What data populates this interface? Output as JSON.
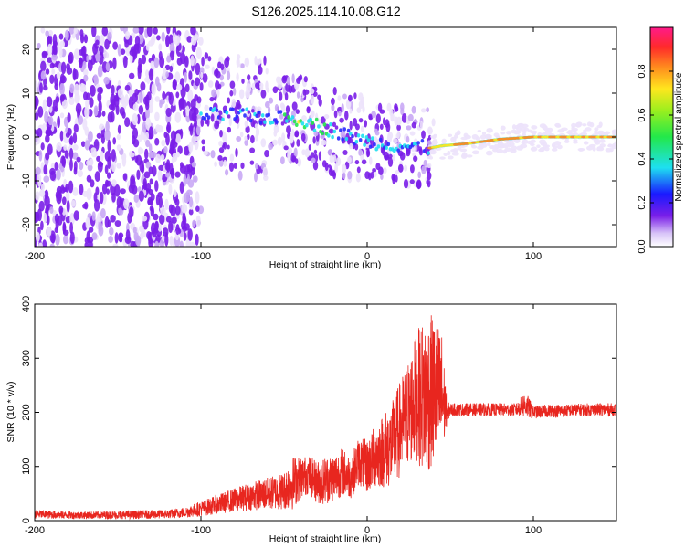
{
  "title": "S126.2025.114.10.08.G12",
  "colors": {
    "snr_line": "#e8261f",
    "spectrogram_low": "#7a1ee8",
    "spectrogram_mid": "#1ee0e0",
    "spectrogram_high": "#ff2a2a"
  },
  "chart_data": [
    {
      "type": "heatmap",
      "name": "spectrogram",
      "xlabel": "Height of straight line (km)",
      "ylabel": "Frequency (Hz)",
      "xlim": [
        -200,
        150
      ],
      "ylim": [
        -25,
        25
      ],
      "xticks": [
        -200,
        -100,
        0,
        100
      ],
      "xtick_labels": [
        "-200",
        "-100",
        "0",
        "100"
      ],
      "yticks": [
        -20,
        -10,
        0,
        10,
        20
      ],
      "ytick_labels": [
        "-20",
        "-10",
        "0",
        "10",
        "20"
      ],
      "colorbar": {
        "label": "Normalized spectral amplitude",
        "range": [
          0.0,
          1.0
        ],
        "ticks": [
          0.0,
          0.2,
          0.4,
          0.6,
          0.8
        ],
        "tick_labels": [
          "0.0",
          "0.2",
          "0.4",
          "0.6",
          "0.8"
        ],
        "colormap": "rainbow (white-violet-blue-cyan-green-yellow-red-magenta)"
      },
      "frequency_ridge": [
        {
          "x": -100,
          "y": 5
        },
        {
          "x": -80,
          "y": 5
        },
        {
          "x": -60,
          "y": 4.5
        },
        {
          "x": -40,
          "y": 4
        },
        {
          "x": -25,
          "y": 2
        },
        {
          "x": -10,
          "y": 0
        },
        {
          "x": 0,
          "y": -1
        },
        {
          "x": 20,
          "y": -2
        },
        {
          "x": 38,
          "y": -2.5
        },
        {
          "x": 45,
          "y": -2
        },
        {
          "x": 60,
          "y": -1.5
        },
        {
          "x": 80,
          "y": -0.5
        },
        {
          "x": 100,
          "y": 0
        },
        {
          "x": 150,
          "y": 0
        }
      ]
    },
    {
      "type": "line",
      "name": "snr",
      "xlabel": "Height of straight line (km)",
      "ylabel": "SNR (10 * v/v)",
      "xlim": [
        -200,
        150
      ],
      "ylim": [
        0,
        400
      ],
      "xticks": [
        -200,
        -100,
        0,
        100
      ],
      "xtick_labels": [
        "-200",
        "-100",
        "0",
        "100"
      ],
      "yticks": [
        0,
        100,
        200,
        300,
        400
      ],
      "ytick_labels": [
        "0",
        "100",
        "200",
        "300",
        "400"
      ],
      "series": [
        {
          "x": [
            -200,
            -180,
            -160,
            -140,
            -120,
            -110,
            -100,
            -90,
            -80,
            -70,
            -60,
            -50,
            -45,
            -40,
            -35,
            -30,
            -25,
            -20,
            -15,
            -10,
            -5,
            0,
            5,
            10,
            15,
            20,
            25,
            30,
            35,
            40,
            45,
            48,
            50,
            60,
            70,
            80,
            90,
            95,
            100,
            110,
            120,
            130,
            140,
            150
          ],
          "mean": [
            12,
            10,
            10,
            11,
            12,
            15,
            22,
            30,
            38,
            45,
            50,
            55,
            70,
            80,
            85,
            70,
            75,
            80,
            90,
            80,
            110,
            100,
            120,
            130,
            140,
            170,
            200,
            230,
            230,
            240,
            230,
            200,
            205,
            205,
            205,
            205,
            205,
            215,
            200,
            203,
            203,
            205,
            205,
            205
          ],
          "spread": [
            8,
            7,
            7,
            8,
            8,
            10,
            14,
            18,
            22,
            26,
            30,
            35,
            50,
            40,
            35,
            40,
            45,
            45,
            45,
            40,
            45,
            50,
            60,
            70,
            80,
            90,
            100,
            120,
            150,
            140,
            120,
            20,
            12,
            12,
            12,
            12,
            12,
            25,
            12,
            12,
            12,
            12,
            12,
            12
          ]
        }
      ]
    }
  ]
}
